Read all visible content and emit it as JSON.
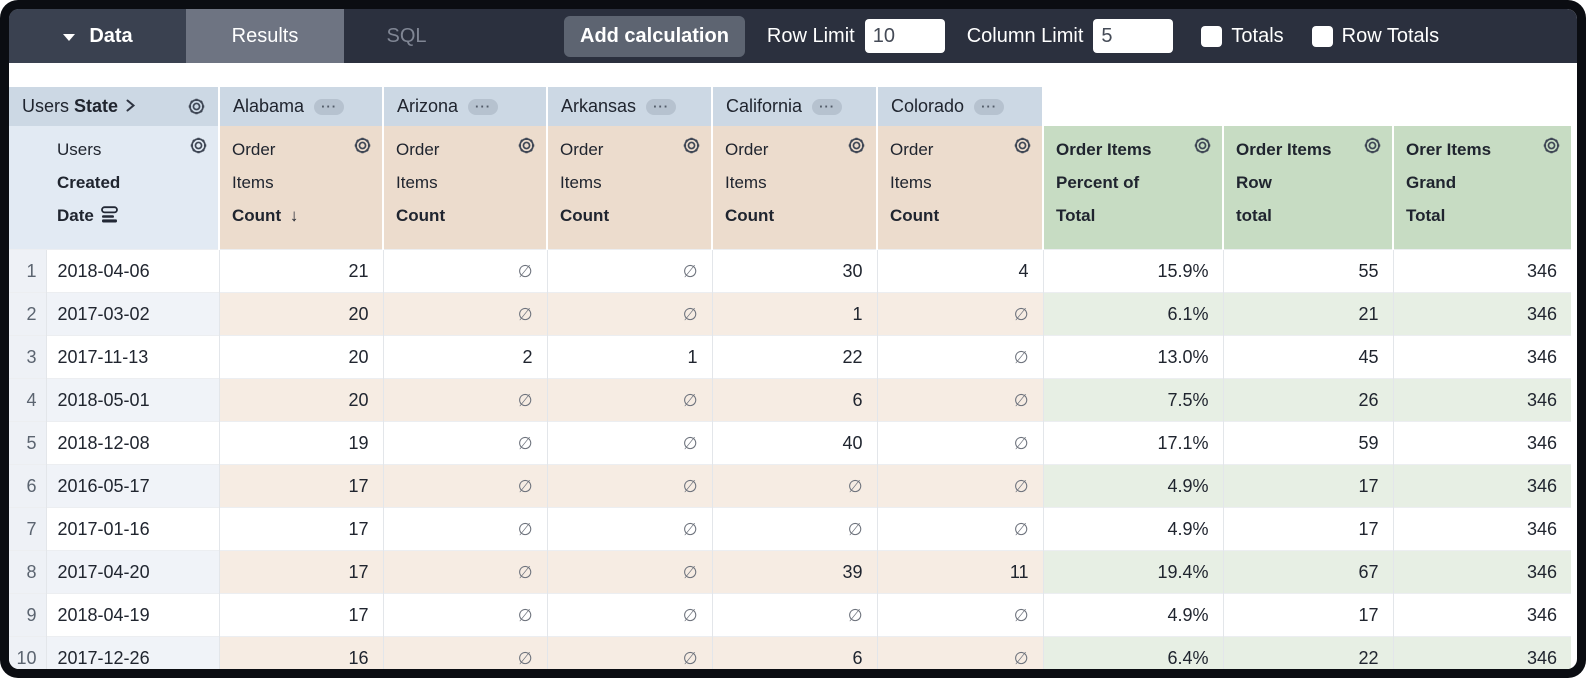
{
  "toolbar": {
    "data_label": "Data",
    "tabs": [
      {
        "label": "Results",
        "active": true
      },
      {
        "label": "SQL",
        "active": false
      }
    ],
    "add_calculation_label": "Add calculation",
    "row_limit": {
      "label": "Row Limit",
      "value": "10"
    },
    "column_limit": {
      "label": "Column Limit",
      "value": "5"
    },
    "totals": {
      "label": "Totals",
      "checked": false
    },
    "row_totals": {
      "label": "Row Totals",
      "checked": false
    }
  },
  "pivot": {
    "dimension_prefix": "Users",
    "dimension_name": "State",
    "values": [
      "Alabama",
      "Arizona",
      "Arkansas",
      "California",
      "Colorado"
    ]
  },
  "columns": {
    "row_dimension": {
      "prefix": "Users",
      "name_line1": "Created",
      "name_line2": "Date"
    },
    "measure": {
      "line1": "Order",
      "line2": "Items",
      "line3": "Count"
    },
    "sorted_measure_index": 0,
    "calc_columns": [
      {
        "line1": "Order Items",
        "line2": "Percent of",
        "line3": "Total"
      },
      {
        "line1": "Order Items",
        "line2": "Row",
        "line3": "total"
      },
      {
        "line1": "Orer Items",
        "line2": "Grand",
        "line3": "Total"
      }
    ]
  },
  "rows": [
    {
      "index": "1",
      "date": "2018-04-06",
      "values": [
        "21",
        "∅",
        "∅",
        "30",
        "4"
      ],
      "percent": "15.9%",
      "row_total": "55",
      "grand_total": "346"
    },
    {
      "index": "2",
      "date": "2017-03-02",
      "values": [
        "20",
        "∅",
        "∅",
        "1",
        "∅"
      ],
      "percent": "6.1%",
      "row_total": "21",
      "grand_total": "346"
    },
    {
      "index": "3",
      "date": "2017-11-13",
      "values": [
        "20",
        "2",
        "1",
        "22",
        "∅"
      ],
      "percent": "13.0%",
      "row_total": "45",
      "grand_total": "346"
    },
    {
      "index": "4",
      "date": "2018-05-01",
      "values": [
        "20",
        "∅",
        "∅",
        "6",
        "∅"
      ],
      "percent": "7.5%",
      "row_total": "26",
      "grand_total": "346"
    },
    {
      "index": "5",
      "date": "2018-12-08",
      "values": [
        "19",
        "∅",
        "∅",
        "40",
        "∅"
      ],
      "percent": "17.1%",
      "row_total": "59",
      "grand_total": "346"
    },
    {
      "index": "6",
      "date": "2016-05-17",
      "values": [
        "17",
        "∅",
        "∅",
        "∅",
        "∅"
      ],
      "percent": "4.9%",
      "row_total": "17",
      "grand_total": "346"
    },
    {
      "index": "7",
      "date": "2017-01-16",
      "values": [
        "17",
        "∅",
        "∅",
        "∅",
        "∅"
      ],
      "percent": "4.9%",
      "row_total": "17",
      "grand_total": "346"
    },
    {
      "index": "8",
      "date": "2017-04-20",
      "values": [
        "17",
        "∅",
        "∅",
        "39",
        "11"
      ],
      "percent": "19.4%",
      "row_total": "67",
      "grand_total": "346"
    },
    {
      "index": "9",
      "date": "2018-04-19",
      "values": [
        "17",
        "∅",
        "∅",
        "∅",
        "∅"
      ],
      "percent": "4.9%",
      "row_total": "17",
      "grand_total": "346"
    },
    {
      "index": "10",
      "date": "2017-12-26",
      "values": [
        "16",
        "∅",
        "∅",
        "6",
        "∅"
      ],
      "percent": "6.4%",
      "row_total": "22",
      "grand_total": "346"
    }
  ],
  "icons": {
    "data_dropdown_caret": "▾",
    "pivot_chevron": "❯",
    "column_menu_ellipsis": "···",
    "gear": "⚙",
    "sort_descending_arrow": "↓",
    "date_grouping": "≡",
    "null_value": "∅"
  },
  "colors": {
    "topbar": "#2b303e",
    "active_tab": "#6e7482",
    "pivot_header": "#ccd8e4",
    "dimension_header": "#e2eaf3",
    "measure_header": "#ecdccd",
    "calc_header": "#c7dcc3"
  }
}
